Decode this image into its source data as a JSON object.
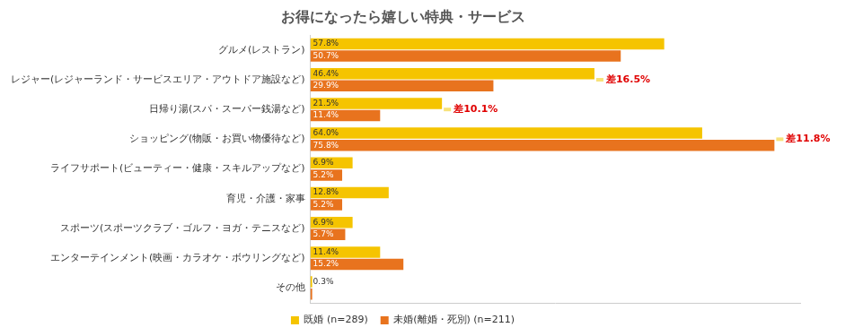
{
  "chart_data": {
    "type": "bar",
    "title": "お得になったら嬉しい特典・サービス",
    "orientation": "horizontal",
    "categories": [
      "グルメ(レストラン)",
      "レジャー(レジャーランド・サービスエリア・アウトドア施設など)",
      "日帰り湯(スパ・スーパー銭湯など)",
      "ショッピング(物販・お買い物優待など)",
      "ライフサポート(ビューティー・健康・スキルアップなど)",
      "育児・介護・家事",
      "スポーツ(スポーツクラブ・ゴルフ・ヨガ・テニスなど)",
      "エンターテインメント(映画・カラオケ・ボウリングなど)",
      "その他"
    ],
    "series": [
      {
        "name": "既婚 (n=289)",
        "color": "#f5c400",
        "values": [
          57.8,
          46.4,
          21.5,
          64.0,
          6.9,
          12.8,
          6.9,
          11.4,
          0.3
        ],
        "value_labels": [
          "57.8%",
          "46.4%",
          "21.5%",
          "64.0%",
          "6.9%",
          "12.8%",
          "6.9%",
          "11.4%",
          "0.3%"
        ]
      },
      {
        "name": "未婚(離婚・死別) (n=211)",
        "color": "#e8731e",
        "values": [
          50.7,
          29.9,
          11.4,
          75.8,
          5.2,
          5.2,
          5.7,
          15.2,
          0.3
        ],
        "value_labels": [
          "50.7%",
          "29.9%",
          "11.4%",
          "75.8%",
          "5.2%",
          "5.2%",
          "5.7%",
          "15.2%",
          null
        ]
      }
    ],
    "xlim": [
      0,
      80
    ],
    "grid": false,
    "tick_labels": "y",
    "data_labels": true,
    "legend": "bottom",
    "annotations": [
      {
        "text": "差16.5%",
        "category": "レジャー(レジャーランド・サービスエリア・アウトドア施設など)"
      },
      {
        "text": "差10.1%",
        "category": "日帰り湯(スパ・スーパー銭湯など)"
      },
      {
        "text": "差11.8%",
        "category": "ショッピング(物販・お買い物優待など)"
      }
    ]
  }
}
